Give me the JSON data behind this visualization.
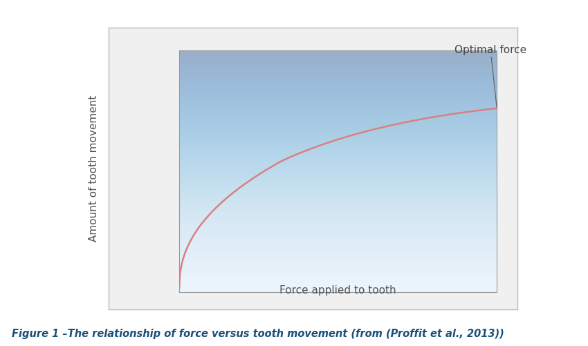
{
  "xlabel": "Force applied to tooth",
  "ylabel": "Amount of tooth movement",
  "annotation_text": "Optimal force",
  "curve_color": "#d98080",
  "curve_linewidth": 1.8,
  "plot_bg_top": "#c8dff0",
  "plot_bg_bottom": "#e8f3fa",
  "outer_bg_color": "#f0f0f0",
  "outer_border_color": "#bbbbbb",
  "inner_border_color": "#999999",
  "xlabel_fontsize": 11,
  "ylabel_fontsize": 11,
  "annotation_fontsize": 11,
  "caption": "Figure 1 –The relationship of force versus tooth movement (from (Proffit et al., 2013))",
  "caption_fontsize": 10.5
}
